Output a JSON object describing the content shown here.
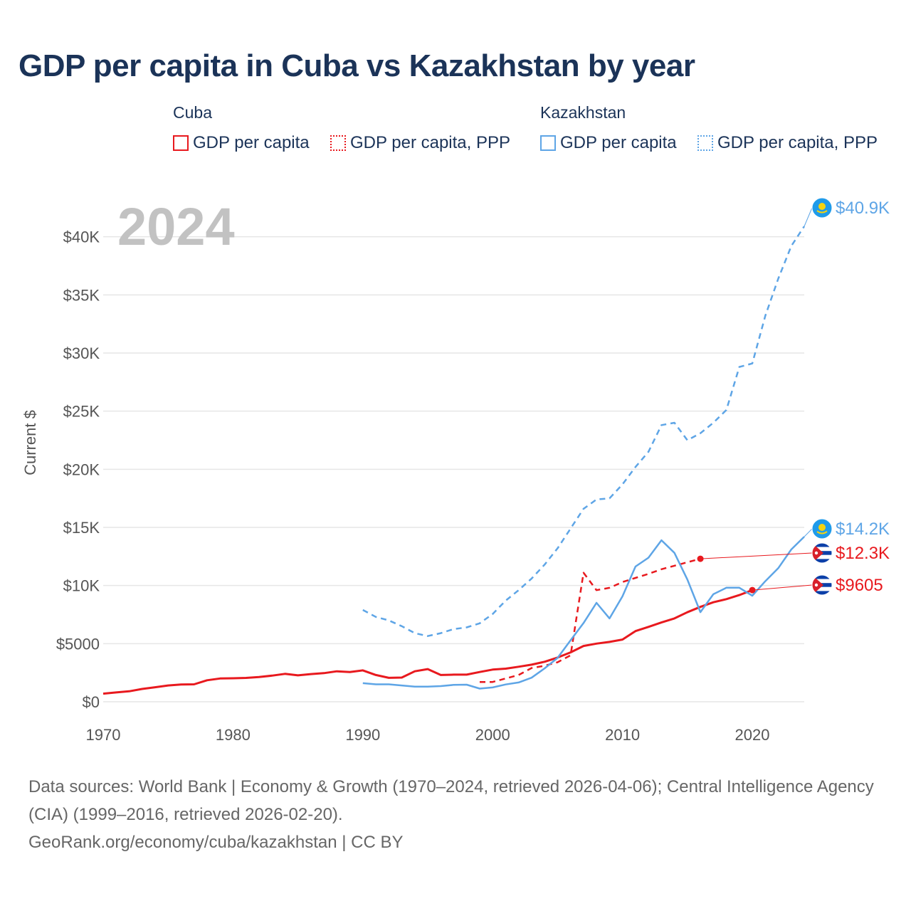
{
  "title": "GDP per capita in Cuba vs Kazakhstan by year",
  "legend": {
    "groups": [
      {
        "name": "Cuba",
        "color": "#e8191e",
        "items": [
          {
            "label": "GDP per capita",
            "style": "solid"
          },
          {
            "label": "GDP per capita, PPP",
            "style": "dotted"
          }
        ]
      },
      {
        "name": "Kazakhstan",
        "color": "#5ea5e6",
        "items": [
          {
            "label": "GDP per capita",
            "style": "solid"
          },
          {
            "label": "GDP per capita, PPP",
            "style": "dotted"
          }
        ]
      }
    ]
  },
  "chart_data": {
    "type": "line",
    "title": "GDP per capita in Cuba vs Kazakhstan by year",
    "year_watermark": "2024",
    "xlabel": "",
    "ylabel": "Current $",
    "xlim": [
      1970,
      2024
    ],
    "ylim": [
      0,
      42000
    ],
    "x_ticks": [
      1970,
      1980,
      1990,
      2000,
      2010,
      2020
    ],
    "y_ticks": [
      {
        "value": 0,
        "label": "$0"
      },
      {
        "value": 5000,
        "label": "$5000"
      },
      {
        "value": 10000,
        "label": "$10K"
      },
      {
        "value": 15000,
        "label": "$15K"
      },
      {
        "value": 20000,
        "label": "$20K"
      },
      {
        "value": 25000,
        "label": "$25K"
      },
      {
        "value": 30000,
        "label": "$30K"
      },
      {
        "value": 35000,
        "label": "$35K"
      },
      {
        "value": 40000,
        "label": "$40K"
      }
    ],
    "series": [
      {
        "name": "Cuba GDP per capita",
        "country": "Cuba",
        "color": "#e8191e",
        "dash": "none",
        "width": 3,
        "end_label": "$9605",
        "flag": "cuba",
        "x": [
          1970,
          1971,
          1972,
          1973,
          1974,
          1975,
          1976,
          1977,
          1978,
          1979,
          1980,
          1981,
          1982,
          1983,
          1984,
          1985,
          1986,
          1987,
          1988,
          1989,
          1990,
          1991,
          1992,
          1993,
          1994,
          1995,
          1996,
          1997,
          1998,
          1999,
          2000,
          2001,
          2002,
          2003,
          2004,
          2005,
          2006,
          2007,
          2008,
          2009,
          2010,
          2011,
          2012,
          2013,
          2014,
          2015,
          2016,
          2017,
          2018,
          2019,
          2020
        ],
        "y": [
          700,
          800,
          900,
          1100,
          1250,
          1400,
          1480,
          1500,
          1850,
          2000,
          2020,
          2050,
          2130,
          2250,
          2400,
          2270,
          2380,
          2460,
          2620,
          2560,
          2700,
          2300,
          2060,
          2080,
          2620,
          2810,
          2300,
          2330,
          2330,
          2560,
          2770,
          2850,
          3010,
          3190,
          3440,
          3800,
          4250,
          4800,
          5000,
          5150,
          5350,
          6080,
          6440,
          6820,
          7170,
          7700,
          8160,
          8560,
          8830,
          9180,
          9605
        ]
      },
      {
        "name": "Cuba GDP per capita, PPP",
        "country": "Cuba",
        "color": "#e8191e",
        "dash": "8,6",
        "width": 2.5,
        "end_label": "$12.3K",
        "flag": "cuba",
        "x": [
          1999,
          2000,
          2001,
          2002,
          2003,
          2004,
          2005,
          2006,
          2007,
          2008,
          2009,
          2010,
          2011,
          2012,
          2013,
          2014,
          2015,
          2016
        ],
        "y": [
          1700,
          1700,
          2000,
          2300,
          2900,
          3100,
          3400,
          4000,
          11100,
          9600,
          9800,
          10300,
          10650,
          11000,
          11400,
          11700,
          12000,
          12300
        ]
      },
      {
        "name": "Kazakhstan GDP per capita",
        "country": "Kazakhstan",
        "color": "#5ea5e6",
        "dash": "none",
        "width": 2.5,
        "end_label": "$14.2K",
        "flag": "kazakhstan",
        "x": [
          1990,
          1991,
          1992,
          1993,
          1994,
          1995,
          1996,
          1997,
          1998,
          1999,
          2000,
          2001,
          2002,
          2003,
          2004,
          2005,
          2006,
          2007,
          2008,
          2009,
          2010,
          2011,
          2012,
          2013,
          2014,
          2015,
          2016,
          2017,
          2018,
          2019,
          2020,
          2021,
          2022,
          2023,
          2024
        ],
        "y": [
          1600,
          1500,
          1500,
          1400,
          1300,
          1300,
          1350,
          1450,
          1470,
          1130,
          1230,
          1490,
          1660,
          2070,
          2870,
          3770,
          5290,
          6770,
          8510,
          7170,
          9070,
          11630,
          12390,
          13890,
          12810,
          10510,
          7710,
          9250,
          9810,
          9810,
          9120,
          10370,
          11490,
          13100,
          14200
        ]
      },
      {
        "name": "Kazakhstan GDP per capita, PPP",
        "country": "Kazakhstan",
        "color": "#5ea5e6",
        "dash": "8,6",
        "width": 2.5,
        "end_label": "$40.9K",
        "flag": "kazakhstan",
        "x": [
          1990,
          1991,
          1992,
          1993,
          1994,
          1995,
          1996,
          1997,
          1998,
          1999,
          2000,
          2001,
          2002,
          2003,
          2004,
          2005,
          2006,
          2007,
          2008,
          2009,
          2010,
          2011,
          2012,
          2013,
          2014,
          2015,
          2016,
          2017,
          2018,
          2019,
          2020,
          2021,
          2022,
          2023,
          2024
        ],
        "y": [
          7900,
          7300,
          7000,
          6500,
          5900,
          5650,
          5900,
          6250,
          6400,
          6750,
          7550,
          8700,
          9600,
          10600,
          11800,
          13200,
          14900,
          16600,
          17400,
          17500,
          18700,
          20200,
          21500,
          23800,
          24000,
          22500,
          23100,
          24000,
          25100,
          28800,
          29100,
          33200,
          36400,
          39200,
          40900
        ]
      }
    ]
  },
  "footer": {
    "sources": "Data sources: World Bank | Economy & Growth (1970–2024, retrieved 2026-04-06); Central Intelligence Agency (CIA) (1999–2016, retrieved 2026-02-20).",
    "credit": "GeoRank.org/economy/cuba/kazakhstan | CC BY"
  }
}
